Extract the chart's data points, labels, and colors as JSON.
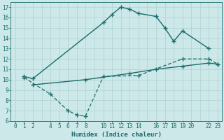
{
  "bg_color": "#cce8e8",
  "line_color": "#1a6b6b",
  "grid_color": "#b8d8d8",
  "xlabel": "Humidex (Indice chaleur)",
  "ylim": [
    6,
    17.5
  ],
  "xlim": [
    -0.5,
    23.5
  ],
  "yticks": [
    6,
    7,
    8,
    9,
    10,
    11,
    12,
    13,
    14,
    15,
    16,
    17
  ],
  "xticks": [
    0,
    1,
    2,
    4,
    5,
    6,
    7,
    8,
    10,
    11,
    12,
    13,
    14,
    16,
    17,
    18,
    19,
    20,
    22,
    23
  ],
  "line1_x": [
    1,
    2,
    10,
    11,
    12,
    13,
    14,
    16,
    17,
    18,
    19,
    22
  ],
  "line1_y": [
    10.3,
    10.1,
    15.5,
    16.3,
    17.0,
    16.8,
    16.4,
    16.1,
    15.0,
    13.7,
    14.7,
    13.0
  ],
  "line2_x": [
    2,
    8,
    13,
    16,
    19,
    22,
    23
  ],
  "line2_y": [
    9.5,
    10.0,
    10.6,
    11.0,
    11.3,
    11.6,
    11.5
  ],
  "line3_x": [
    1,
    4,
    6,
    7,
    8,
    10,
    14,
    19,
    22,
    23
  ],
  "line3_y": [
    10.2,
    8.6,
    7.0,
    6.6,
    6.5,
    10.3,
    10.4,
    12.0,
    12.0,
    11.5
  ],
  "tick_fontsize": 5.5,
  "xlabel_fontsize": 6.5
}
